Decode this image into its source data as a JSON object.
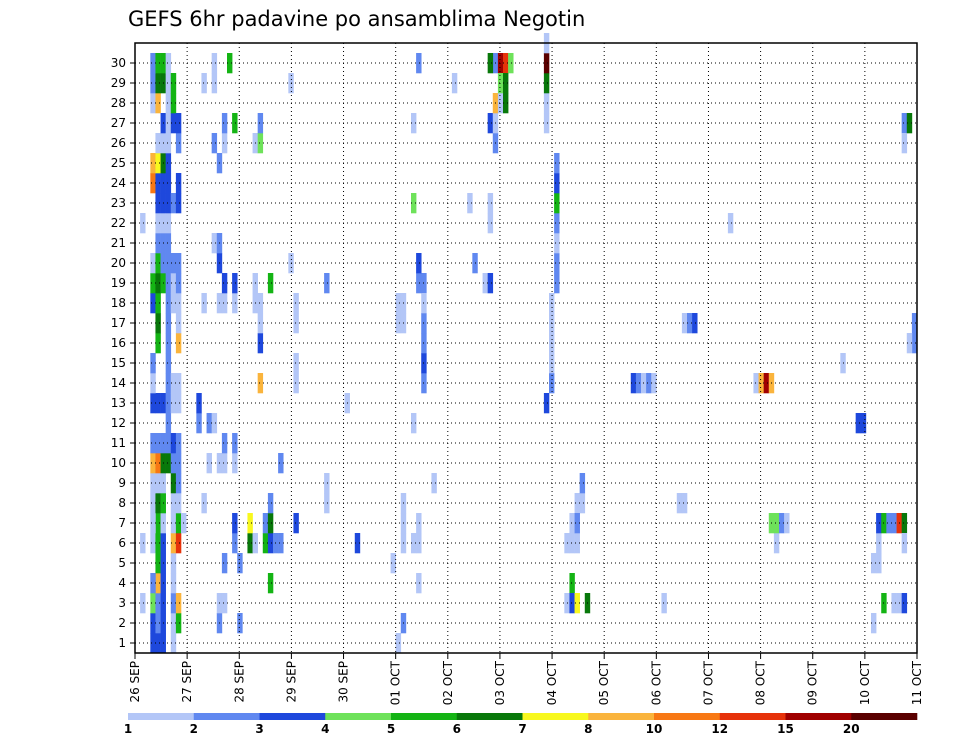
{
  "chart_data": {
    "type": "heatmap",
    "title": "GEFS 6hr padavine po ansamblima Negotin",
    "x_tick_labels": [
      "26 SEP",
      "27 SEP",
      "28 SEP",
      "29 SEP",
      "30 SEP",
      "01 OCT",
      "02 OCT",
      "03 OCT",
      "04 OCT",
      "05 OCT",
      "06 OCT",
      "07 OCT",
      "08 OCT",
      "09 OCT",
      "10 OCT",
      "11 OCT"
    ],
    "y_tick_labels": [
      "1",
      "2",
      "3",
      "4",
      "5",
      "6",
      "7",
      "8",
      "9",
      "10",
      "11",
      "12",
      "13",
      "14",
      "15",
      "16",
      "17",
      "18",
      "19",
      "20",
      "21",
      "22",
      "23",
      "24",
      "25",
      "26",
      "27",
      "28",
      "29",
      "30"
    ],
    "time_step_hours": 6,
    "levels": [
      1,
      2,
      3,
      4,
      5,
      6,
      7,
      8,
      10,
      12,
      15,
      20
    ],
    "colors": [
      "#b3c6f7",
      "#6088f0",
      "#1e48dc",
      "#6ee25a",
      "#14b414",
      "#08780a",
      "#f8f81e",
      "#fab43c",
      "#f87814",
      "#e6320a",
      "#a00000",
      "#5a0000"
    ],
    "cells": [
      [
        3,
        1,
        1
      ],
      [
        6,
        1,
        1
      ],
      [
        22,
        1,
        1
      ],
      [
        1,
        3,
        3
      ],
      [
        1,
        4,
        3
      ],
      [
        2,
        3,
        3
      ],
      [
        2,
        4,
        2
      ],
      [
        3,
        3,
        4
      ],
      [
        3,
        4,
        2
      ],
      [
        4,
        4,
        8
      ],
      [
        4,
        3,
        2
      ],
      [
        5,
        4,
        5
      ],
      [
        6,
        3,
        1
      ],
      [
        6,
        4,
        5
      ],
      [
        7,
        4,
        5
      ],
      [
        7,
        3,
        1
      ],
      [
        8,
        3,
        1
      ],
      [
        8,
        4,
        6
      ],
      [
        9,
        3,
        1
      ],
      [
        9,
        4,
        1
      ],
      [
        10,
        3,
        8
      ],
      [
        10,
        4,
        9
      ],
      [
        11,
        3,
        2
      ],
      [
        11,
        4,
        2
      ],
      [
        13,
        3,
        3
      ],
      [
        13,
        4,
        3
      ],
      [
        14,
        3,
        1
      ],
      [
        15,
        3,
        2
      ],
      [
        16,
        4,
        5
      ],
      [
        17,
        4,
        6
      ],
      [
        18,
        3,
        3
      ],
      [
        18,
        4,
        5
      ],
      [
        19,
        3,
        5
      ],
      [
        19,
        4,
        6
      ],
      [
        20,
        3,
        1
      ],
      [
        20,
        4,
        5
      ],
      [
        21,
        4,
        2
      ],
      [
        22,
        4,
        1
      ],
      [
        23,
        4,
        3
      ],
      [
        24,
        3,
        9
      ],
      [
        24,
        4,
        3
      ],
      [
        25,
        3,
        8
      ],
      [
        25,
        4,
        7
      ],
      [
        26,
        4,
        1
      ],
      [
        28,
        3,
        1
      ],
      [
        28,
        4,
        8
      ],
      [
        29,
        3,
        2
      ],
      [
        29,
        4,
        6
      ],
      [
        30,
        3,
        2
      ],
      [
        30,
        4,
        5
      ],
      [
        1,
        5,
        3
      ],
      [
        2,
        5,
        3
      ],
      [
        3,
        5,
        3
      ],
      [
        4,
        5,
        3
      ],
      [
        5,
        5,
        3
      ],
      [
        6,
        5,
        3
      ],
      [
        7,
        5,
        1
      ],
      [
        8,
        5,
        5
      ],
      [
        9,
        5,
        1
      ],
      [
        10,
        5,
        6
      ],
      [
        11,
        5,
        2
      ],
      [
        13,
        5,
        3
      ],
      [
        19,
        5,
        5
      ],
      [
        20,
        5,
        2
      ],
      [
        21,
        5,
        2
      ],
      [
        22,
        5,
        1
      ],
      [
        23,
        5,
        3
      ],
      [
        24,
        5,
        3
      ],
      [
        25,
        5,
        6
      ],
      [
        26,
        5,
        1
      ],
      [
        27,
        5,
        3
      ],
      [
        29,
        5,
        6
      ],
      [
        30,
        5,
        5
      ],
      [
        10,
        6,
        6
      ],
      [
        11,
        6,
        2
      ],
      [
        12,
        6,
        2
      ],
      [
        13,
        6,
        2
      ],
      [
        14,
        6,
        2
      ],
      [
        15,
        6,
        2
      ],
      [
        16,
        6,
        2
      ],
      [
        17,
        6,
        2
      ],
      [
        18,
        6,
        2
      ],
      [
        19,
        6,
        2
      ],
      [
        20,
        6,
        2
      ],
      [
        21,
        6,
        2
      ],
      [
        22,
        6,
        1
      ],
      [
        23,
        6,
        3
      ],
      [
        24,
        6,
        3
      ],
      [
        25,
        6,
        3
      ],
      [
        26,
        6,
        1
      ],
      [
        27,
        6,
        1
      ],
      [
        28,
        6,
        1
      ],
      [
        29,
        6,
        1
      ],
      [
        30,
        6,
        1
      ],
      [
        1,
        7,
        1
      ],
      [
        2,
        7,
        1
      ],
      [
        3,
        7,
        2
      ],
      [
        4,
        7,
        1
      ],
      [
        5,
        7,
        1
      ],
      [
        6,
        7,
        8
      ],
      [
        7,
        7,
        1
      ],
      [
        8,
        7,
        1
      ],
      [
        9,
        7,
        6
      ],
      [
        10,
        7,
        2
      ],
      [
        11,
        7,
        3
      ],
      [
        13,
        7,
        1
      ],
      [
        14,
        7,
        1
      ],
      [
        18,
        7,
        1
      ],
      [
        19,
        7,
        1
      ],
      [
        20,
        7,
        2
      ],
      [
        23,
        7,
        2
      ],
      [
        27,
        7,
        3
      ],
      [
        28,
        7,
        5
      ],
      [
        29,
        7,
        5
      ],
      [
        2,
        8,
        5
      ],
      [
        3,
        8,
        8
      ],
      [
        6,
        8,
        10
      ],
      [
        7,
        8,
        5
      ],
      [
        8,
        8,
        1
      ],
      [
        9,
        8,
        2
      ],
      [
        10,
        8,
        2
      ],
      [
        11,
        8,
        2
      ],
      [
        13,
        8,
        1
      ],
      [
        14,
        8,
        1
      ],
      [
        16,
        8,
        8
      ],
      [
        17,
        8,
        1
      ],
      [
        18,
        8,
        1
      ],
      [
        19,
        8,
        2
      ],
      [
        20,
        8,
        2
      ],
      [
        23,
        8,
        3
      ],
      [
        24,
        8,
        3
      ],
      [
        26,
        8,
        2
      ],
      [
        27,
        8,
        3
      ],
      [
        7,
        9,
        1
      ],
      [
        12,
        12,
        2
      ],
      [
        13,
        12,
        3
      ],
      [
        8,
        13,
        1
      ],
      [
        18,
        13,
        1
      ],
      [
        29,
        13,
        1
      ],
      [
        10,
        14,
        1
      ],
      [
        12,
        14,
        2
      ],
      [
        12,
        15,
        1
      ],
      [
        21,
        15,
        1
      ],
      [
        26,
        15,
        2
      ],
      [
        29,
        15,
        1
      ],
      [
        30,
        15,
        1
      ],
      [
        2,
        16,
        2
      ],
      [
        20,
        16,
        3
      ],
      [
        3,
        16,
        1
      ],
      [
        10,
        16,
        1
      ],
      [
        18,
        16,
        1
      ],
      [
        21,
        16,
        2
      ],
      [
        25,
        16,
        2
      ],
      [
        3,
        17,
        1
      ],
      [
        5,
        17,
        2
      ],
      [
        10,
        17,
        1
      ],
      [
        11,
        17,
        2
      ],
      [
        18,
        17,
        1
      ],
      [
        19,
        17,
        3
      ],
      [
        26,
        17,
        1
      ],
      [
        27,
        17,
        2
      ],
      [
        30,
        18,
        5
      ],
      [
        6,
        19,
        2
      ],
      [
        7,
        19,
        3
      ],
      [
        10,
        19,
        1
      ],
      [
        11,
        19,
        2
      ],
      [
        18,
        19,
        1
      ],
      [
        19,
        19,
        3
      ],
      [
        27,
        19,
        5
      ],
      [
        2,
        20,
        2
      ],
      [
        5,
        20,
        2
      ],
      [
        6,
        22,
        6
      ],
      [
        7,
        22,
        7
      ],
      [
        6,
        23,
        1
      ],
      [
        18,
        23,
        1
      ],
      [
        19,
        23,
        1
      ],
      [
        26,
        23,
        1
      ],
      [
        14,
        24,
        8
      ],
      [
        16,
        24,
        3
      ],
      [
        17,
        24,
        1
      ],
      [
        18,
        24,
        1
      ],
      [
        26,
        24,
        4
      ],
      [
        27,
        24,
        2
      ],
      [
        6,
        25,
        5
      ],
      [
        6,
        26,
        3
      ],
      [
        7,
        25,
        2
      ],
      [
        7,
        26,
        6
      ],
      [
        8,
        26,
        2
      ],
      [
        6,
        27,
        2
      ],
      [
        4,
        26,
        5
      ],
      [
        19,
        26,
        5
      ],
      [
        6,
        28,
        2
      ],
      [
        10,
        28,
        2
      ],
      [
        20,
        30,
        1
      ],
      [
        29,
        30,
        1
      ],
      [
        7,
        31,
        3
      ],
      [
        14,
        31,
        1
      ],
      [
        15,
        31,
        1
      ],
      [
        17,
        31,
        1
      ],
      [
        18,
        31,
        1
      ],
      [
        8,
        37,
        1
      ],
      [
        9,
        37,
        1
      ],
      [
        19,
        37,
        2
      ],
      [
        13,
        41,
        1
      ],
      [
        6,
        43,
        3
      ],
      [
        5,
        50,
        1
      ],
      [
        1,
        51,
        1
      ],
      [
        17,
        51,
        1
      ],
      [
        18,
        51,
        1
      ],
      [
        2,
        52,
        2
      ],
      [
        6,
        52,
        1
      ],
      [
        7,
        52,
        1
      ],
      [
        8,
        52,
        1
      ],
      [
        17,
        52,
        1
      ],
      [
        18,
        52,
        1
      ],
      [
        23,
        54,
        4
      ],
      [
        27,
        54,
        1
      ],
      [
        30,
        55,
        2
      ],
      [
        4,
        55,
        1
      ],
      [
        19,
        56,
        2
      ],
      [
        14,
        56,
        2
      ],
      [
        15,
        56,
        3
      ],
      [
        16,
        56,
        2
      ],
      [
        17,
        56,
        2
      ],
      [
        18,
        56,
        1
      ],
      [
        19,
        55,
        2
      ],
      [
        12,
        54,
        1
      ],
      [
        6,
        54,
        1
      ],
      [
        6,
        55,
        1
      ],
      [
        7,
        55,
        1
      ],
      [
        20,
        55,
        3
      ],
      [
        9,
        58,
        1
      ],
      [
        20,
        66,
        2
      ],
      [
        23,
        65,
        1
      ],
      [
        29,
        62,
        1
      ],
      [
        19,
        68,
        1
      ],
      [
        27,
        69,
        3
      ],
      [
        19,
        69,
        3
      ],
      [
        22,
        69,
        1
      ],
      [
        23,
        69,
        1
      ],
      [
        26,
        70,
        2
      ],
      [
        27,
        70,
        1
      ],
      [
        30,
        70,
        2
      ],
      [
        30,
        69,
        6
      ],
      [
        28,
        70,
        8
      ],
      [
        28,
        71,
        1
      ],
      [
        28,
        72,
        6
      ],
      [
        30,
        71,
        11
      ],
      [
        30,
        72,
        10
      ],
      [
        30,
        73,
        4
      ],
      [
        29,
        71,
        4
      ],
      [
        29,
        72,
        6
      ],
      [
        13,
        80,
        3
      ],
      [
        14,
        81,
        2
      ],
      [
        15,
        81,
        1
      ],
      [
        16,
        81,
        1
      ],
      [
        17,
        81,
        1
      ],
      [
        18,
        81,
        1
      ],
      [
        19,
        82,
        2
      ],
      [
        20,
        82,
        2
      ],
      [
        21,
        82,
        1
      ],
      [
        22,
        82,
        2
      ],
      [
        23,
        82,
        5
      ],
      [
        24,
        82,
        3
      ],
      [
        25,
        82,
        2
      ],
      [
        27,
        80,
        1
      ],
      [
        28,
        80,
        1
      ],
      [
        29,
        80,
        6
      ],
      [
        30,
        80,
        12
      ],
      [
        31,
        80,
        1
      ],
      [
        6,
        84,
        1
      ],
      [
        6,
        85,
        1
      ],
      [
        7,
        85,
        1
      ],
      [
        8,
        86,
        1
      ],
      [
        8,
        87,
        1
      ],
      [
        9,
        87,
        2
      ],
      [
        6,
        86,
        1
      ],
      [
        7,
        86,
        2
      ],
      [
        4,
        85,
        5
      ],
      [
        3,
        84,
        1
      ],
      [
        3,
        85,
        3
      ],
      [
        3,
        86,
        7
      ],
      [
        3,
        88,
        6
      ],
      [
        14,
        97,
        3
      ],
      [
        14,
        98,
        2
      ],
      [
        14,
        99,
        1
      ],
      [
        14,
        100,
        2
      ],
      [
        14,
        101,
        1
      ],
      [
        8,
        106,
        1
      ],
      [
        8,
        107,
        1
      ],
      [
        3,
        103,
        1
      ],
      [
        17,
        107,
        1
      ],
      [
        17,
        108,
        2
      ],
      [
        17,
        109,
        3
      ],
      [
        22,
        116,
        1
      ],
      [
        14,
        121,
        1
      ],
      [
        14,
        122,
        8
      ],
      [
        14,
        123,
        11
      ],
      [
        14,
        124,
        8
      ],
      [
        6,
        125,
        1
      ],
      [
        7,
        124,
        4
      ],
      [
        7,
        125,
        4
      ],
      [
        7,
        126,
        2
      ],
      [
        7,
        127,
        1
      ],
      [
        15,
        138,
        1
      ],
      [
        12,
        141,
        3
      ],
      [
        12,
        142,
        3
      ],
      [
        2,
        144,
        1
      ],
      [
        5,
        144,
        1
      ],
      [
        5,
        145,
        1
      ],
      [
        6,
        145,
        1
      ],
      [
        3,
        146,
        5
      ],
      [
        3,
        148,
        1
      ],
      [
        3,
        149,
        1
      ],
      [
        7,
        145,
        3
      ],
      [
        7,
        146,
        5
      ],
      [
        7,
        147,
        2
      ],
      [
        7,
        148,
        2
      ],
      [
        7,
        149,
        10
      ],
      [
        7,
        150,
        6
      ],
      [
        3,
        150,
        3
      ],
      [
        6,
        150,
        1
      ],
      [
        27,
        150,
        2
      ],
      [
        26,
        150,
        1
      ],
      [
        27,
        151,
        6
      ],
      [
        16,
        152,
        2
      ],
      [
        17,
        152,
        2
      ],
      [
        16,
        151,
        1
      ]
    ]
  }
}
